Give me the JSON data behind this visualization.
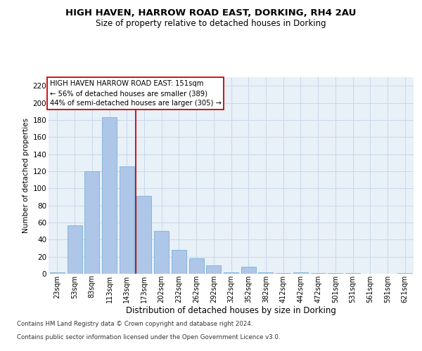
{
  "title1": "HIGH HAVEN, HARROW ROAD EAST, DORKING, RH4 2AU",
  "title2": "Size of property relative to detached houses in Dorking",
  "xlabel": "Distribution of detached houses by size in Dorking",
  "ylabel": "Number of detached properties",
  "footnote1": "Contains HM Land Registry data © Crown copyright and database right 2024.",
  "footnote2": "Contains public sector information licensed under the Open Government Licence v3.0.",
  "annotation_line1": "HIGH HAVEN HARROW ROAD EAST: 151sqm",
  "annotation_line2": "← 56% of detached houses are smaller (389)",
  "annotation_line3": "44% of semi-detached houses are larger (305) →",
  "bar_color": "#aec6e8",
  "bar_edge_color": "#6aaad4",
  "vline_color": "#cc0000",
  "vline_x_index": 4.5,
  "categories": [
    "23sqm",
    "53sqm",
    "83sqm",
    "113sqm",
    "143sqm",
    "173sqm",
    "202sqm",
    "232sqm",
    "262sqm",
    "292sqm",
    "322sqm",
    "352sqm",
    "382sqm",
    "412sqm",
    "442sqm",
    "472sqm",
    "501sqm",
    "531sqm",
    "561sqm",
    "591sqm",
    "621sqm"
  ],
  "values": [
    2,
    57,
    120,
    183,
    126,
    91,
    50,
    28,
    18,
    10,
    2,
    8,
    2,
    1,
    2,
    1,
    1,
    1,
    0,
    0,
    1
  ],
  "ylim": [
    0,
    230
  ],
  "yticks": [
    0,
    20,
    40,
    60,
    80,
    100,
    120,
    140,
    160,
    180,
    200,
    220
  ],
  "grid_color": "#c8d8e8",
  "bg_color": "#e8f0f8",
  "fig_bg_color": "#ffffff",
  "title1_fontsize": 9.5,
  "title2_fontsize": 8.5,
  "ylabel_fontsize": 7.5,
  "xlabel_fontsize": 8.5,
  "tick_fontsize": 7,
  "footnote_fontsize": 6.2
}
